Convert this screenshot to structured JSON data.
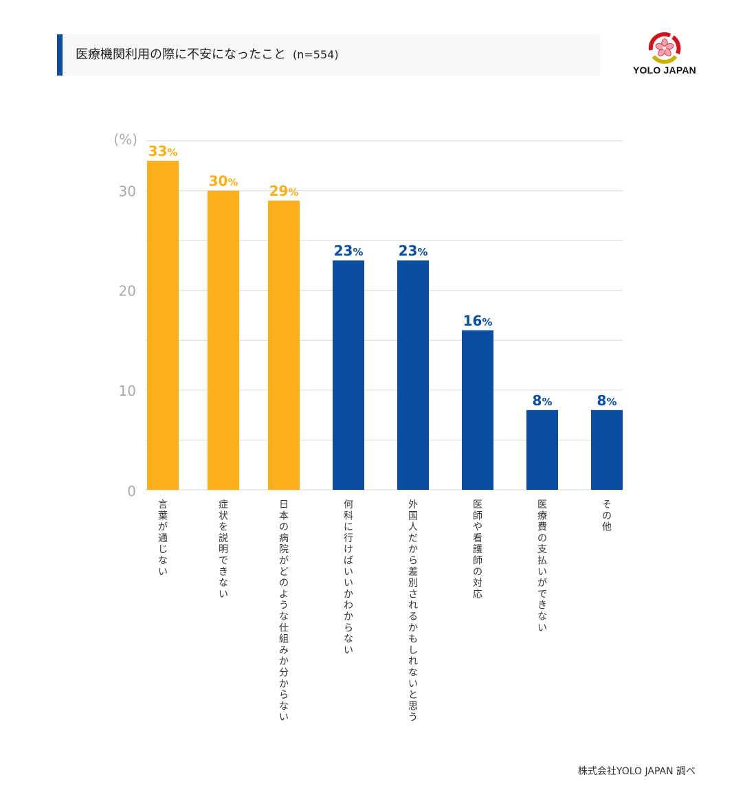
{
  "header": {
    "title": "医療機関利用の際に不安になったこと",
    "sample": "(n=554)"
  },
  "logo": {
    "text": "YOLO JAPAN",
    "icon": "cherry-blossom-logo-icon"
  },
  "footer": {
    "source": "株式会社YOLO JAPAN 調べ"
  },
  "colors": {
    "highlight": "#fbb01b",
    "primary": "#0a4ea1",
    "grid": "#d9d9d9",
    "tick": "#aaaaaa",
    "title_accent": "#0a4ea1"
  },
  "chart_data": {
    "type": "bar",
    "ylabel": "(%)",
    "ylim": [
      0,
      35
    ],
    "yticks": [
      0,
      10,
      20,
      30
    ],
    "value_suffix": "%",
    "categories": [
      "言葉が通じない",
      "症状を説明できない",
      "日本の病院がどのような仕組みか分からない",
      "何科に行けばいいかわからない",
      "外国人だから差別されるかもしれないと思う",
      "医師や看護師の対応",
      "医療費の支払いができない",
      "その他"
    ],
    "values": [
      33,
      30,
      29,
      23,
      23,
      16,
      8,
      8
    ],
    "highlighted": [
      true,
      true,
      true,
      false,
      false,
      false,
      false,
      false
    ],
    "grid": true
  }
}
